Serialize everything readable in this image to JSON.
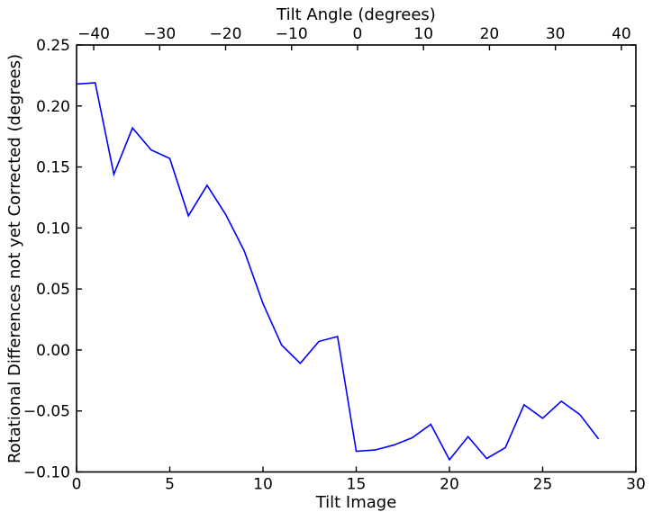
{
  "chart_data": {
    "type": "line",
    "title": "",
    "grid": false,
    "legend": null,
    "series": [
      {
        "name": "rotational-differences",
        "color": "#0000ff",
        "x": [
          0,
          1,
          2,
          3,
          4,
          5,
          6,
          7,
          8,
          9,
          10,
          11,
          12,
          13,
          14,
          15,
          16,
          17,
          18,
          19,
          20,
          21,
          22,
          23,
          24,
          25,
          26,
          27,
          28
        ],
        "y": [
          0.218,
          0.219,
          0.144,
          0.182,
          0.164,
          0.157,
          0.11,
          0.135,
          0.111,
          0.081,
          0.038,
          0.004,
          -0.011,
          0.007,
          0.011,
          -0.083,
          -0.082,
          -0.078,
          -0.072,
          -0.061,
          -0.09,
          -0.071,
          -0.089,
          -0.08,
          -0.045,
          -0.056,
          -0.042,
          -0.053,
          -0.073
        ]
      }
    ],
    "bottom_axis": {
      "label": "Tilt Image",
      "lim": [
        0,
        30
      ],
      "ticks": [
        0,
        5,
        10,
        15,
        20,
        25,
        30
      ],
      "tick_labels": [
        "0",
        "5",
        "10",
        "15",
        "20",
        "25",
        "30"
      ]
    },
    "top_axis": {
      "label": "Tilt Angle (degrees)",
      "lim": [
        -42.6,
        42.2
      ],
      "ticks": [
        -40,
        -30,
        -20,
        -10,
        0,
        10,
        20,
        30,
        40
      ],
      "tick_labels": [
        "−40",
        "−30",
        "−20",
        "−10",
        "0",
        "10",
        "20",
        "30",
        "40"
      ]
    },
    "left_axis": {
      "label": "Rotational Differences not yet Corrected (degrees)",
      "lim": [
        -0.1,
        0.25
      ],
      "ticks": [
        0.25,
        0.2,
        0.15,
        0.1,
        0.05,
        0.0,
        -0.05,
        -0.1
      ],
      "tick_labels": [
        "0.25",
        "0.20",
        "0.15",
        "0.10",
        "0.05",
        "0.00",
        "−0.05",
        "−0.10"
      ]
    },
    "colors": {
      "line": "#0000ff",
      "axis": "#000000",
      "background": "#ffffff"
    }
  }
}
